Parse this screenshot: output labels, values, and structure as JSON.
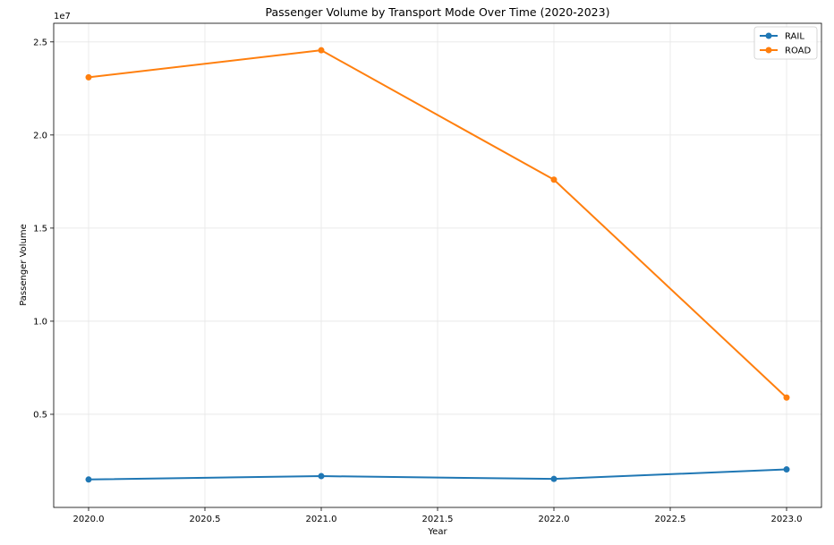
{
  "chart_data": {
    "type": "line",
    "title": "Passenger Volume by Transport Mode Over Time (2020-2023)",
    "xlabel": "Year",
    "ylabel": "Passenger Volume",
    "y_offset_label": "1e7",
    "x": [
      2020,
      2021,
      2022,
      2023
    ],
    "xlim": [
      2019.85,
      2023.15
    ],
    "ylim": [
      0,
      2.6
    ],
    "x_ticks": [
      2020.0,
      2020.5,
      2021.0,
      2021.5,
      2022.0,
      2022.5,
      2023.0
    ],
    "x_tick_labels": [
      "2020.0",
      "2020.5",
      "2021.0",
      "2021.5",
      "2022.0",
      "2022.5",
      "2023.0"
    ],
    "y_ticks": [
      0.5,
      1.0,
      1.5,
      2.0,
      2.5
    ],
    "y_tick_labels": [
      "0.5",
      "1.0",
      "1.5",
      "2.0",
      "2.5"
    ],
    "y_scale_note": "values in units of 1e7 passengers",
    "grid": true,
    "legend_position": "top-right",
    "series": [
      {
        "name": "RAIL",
        "color": "#1f77b4",
        "values": [
          0.15,
          0.168,
          0.153,
          0.204
        ]
      },
      {
        "name": "ROAD",
        "color": "#ff7f0e",
        "values": [
          2.31,
          2.455,
          1.76,
          0.59
        ]
      }
    ]
  }
}
